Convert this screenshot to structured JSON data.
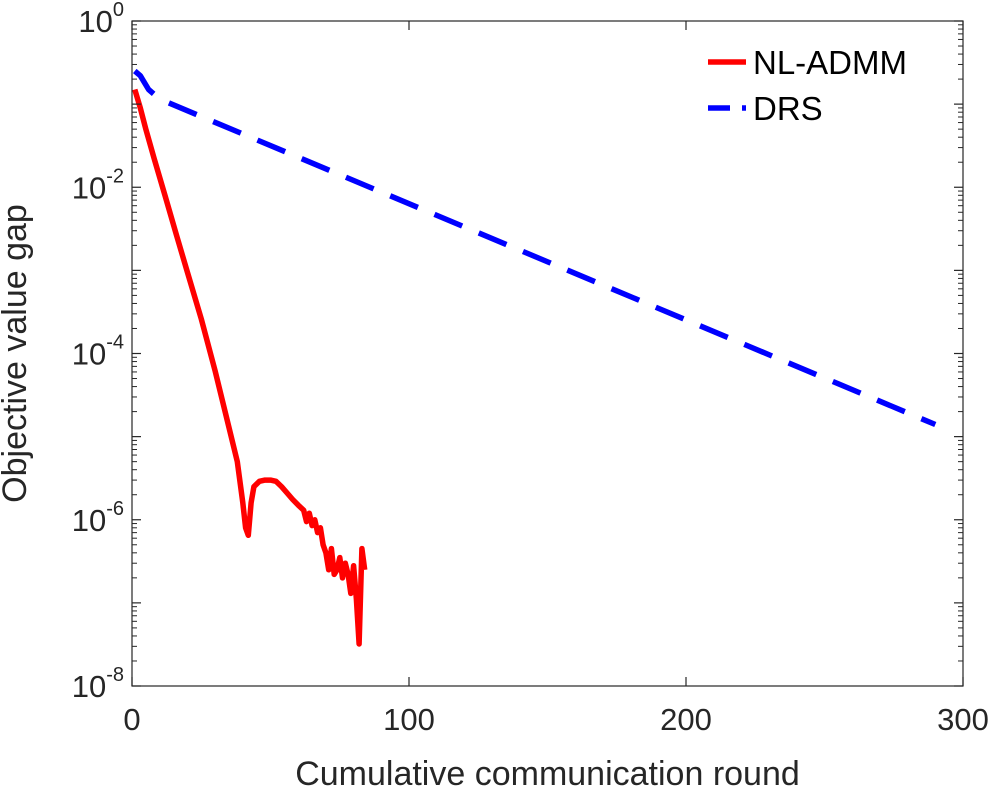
{
  "chart_data": {
    "type": "line",
    "xlabel": "Cumulative communication round",
    "ylabel": "Objective value gap",
    "xlim": [
      0,
      300
    ],
    "ylim": [
      1e-08,
      1
    ],
    "yscale": "log",
    "grid": false,
    "box": true,
    "legend_position": "top-right",
    "x_ticks": [
      {
        "value": 0,
        "label": "0"
      },
      {
        "value": 100,
        "label": "100"
      },
      {
        "value": 200,
        "label": "200"
      },
      {
        "value": 300,
        "label": "300"
      }
    ],
    "y_ticks": [
      {
        "value": 1e-08,
        "base": "10",
        "exp": "-8"
      },
      {
        "value": 1e-06,
        "base": "10",
        "exp": "-6"
      },
      {
        "value": 0.0001,
        "base": "10",
        "exp": "-4"
      },
      {
        "value": 0.01,
        "base": "10",
        "exp": "-2"
      },
      {
        "value": 1,
        "base": "10",
        "exp": "0"
      }
    ],
    "series": [
      {
        "name": "NL-ADMM",
        "color": "#ff0000",
        "style": "solid",
        "x": [
          1,
          3,
          5,
          8,
          12,
          16,
          20,
          25,
          30,
          35,
          38,
          40,
          41,
          42,
          43,
          44,
          46,
          48,
          50,
          52,
          54,
          56,
          58,
          60,
          62,
          63,
          64,
          65,
          66,
          67,
          68,
          69,
          70,
          71,
          72,
          73,
          74,
          75,
          76,
          77,
          78,
          79,
          80,
          81,
          82,
          83,
          84
        ],
        "y": [
          0.15,
          0.09,
          0.05,
          0.022,
          0.0078,
          0.0027,
          0.00095,
          0.00026,
          6.2e-05,
          1.3e-05,
          5e-06,
          1.6e-06,
          8e-07,
          6.5e-07,
          1.6e-06,
          2.5e-06,
          2.9e-06,
          3e-06,
          3e-06,
          2.9e-06,
          2.5e-06,
          2.1e-06,
          1.75e-06,
          1.5e-06,
          1.3e-06,
          9.5e-07,
          1.2e-06,
          8.5e-07,
          1e-06,
          7e-07,
          8e-07,
          5e-07,
          4e-07,
          2.5e-07,
          4.5e-07,
          2.2e-07,
          2.5e-07,
          3.5e-07,
          2e-07,
          3e-07,
          2.2e-07,
          1.3e-07,
          2.8e-07,
          1.1e-07,
          3.2e-08,
          4.5e-07,
          2.5e-07
        ]
      },
      {
        "name": "DRS",
        "color": "#0000ff",
        "style": "dashed",
        "x": [
          1,
          3,
          6,
          10,
          290
        ],
        "y": [
          0.25,
          0.22,
          0.15,
          0.115,
          1.4e-05
        ]
      }
    ]
  }
}
